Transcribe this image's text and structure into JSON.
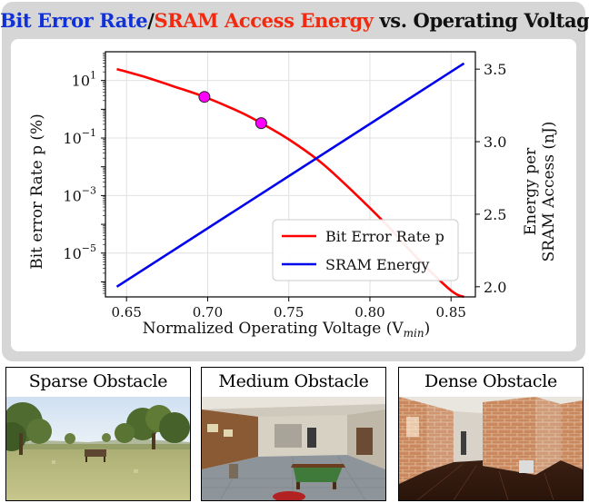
{
  "title": {
    "part1": "Bit Error Rate",
    "sep": "/",
    "part2": "SRAM Access Energy",
    "part3": " vs. Operating Voltage",
    "colors": {
      "part1": "#1030d8",
      "part2": "#f02a10",
      "part3": "#111111"
    }
  },
  "chart_data": {
    "type": "line",
    "xlabel": "Normalized Operating Voltage (V",
    "xlabel_sub": "min",
    "xlabel_close": ")",
    "ylabel_left": "Bit error Rate p (%)",
    "ylabel_right_line1": "Energy per",
    "ylabel_right_line2": "SRAM Access (nJ)",
    "xlim": [
      0.637,
      0.865
    ],
    "x_ticks": [
      "0.65",
      "0.70",
      "0.75",
      "0.80",
      "0.85"
    ],
    "y_left_scale": "log",
    "y_left_lim": [
      3e-07,
      100
    ],
    "y_left_ticks": [
      {
        "base": "10",
        "exp": "1"
      },
      {
        "base": "10",
        "exp": "−1"
      },
      {
        "base": "10",
        "exp": "−3"
      },
      {
        "base": "10",
        "exp": "−5"
      }
    ],
    "y_right_lim": [
      1.93,
      3.62
    ],
    "y_right_ticks": [
      "3.5",
      "3.0",
      "2.5",
      "2.0"
    ],
    "grid": true,
    "legend_position": "lower-right",
    "series": [
      {
        "name": "Bit Error Rate p",
        "color": "#ff0000",
        "axis": "left",
        "x": [
          0.644,
          0.66,
          0.68,
          0.698,
          0.72,
          0.733,
          0.75,
          0.77,
          0.79,
          0.81,
          0.83,
          0.85,
          0.858
        ],
        "y": [
          25,
          14,
          6,
          2.7,
          0.8,
          0.33,
          0.09,
          0.014,
          0.0013,
          0.0001,
          6e-06,
          5e-07,
          3e-07
        ]
      },
      {
        "name": "SRAM Energy",
        "color": "#0000ee",
        "axis": "right",
        "x": [
          0.644,
          0.858
        ],
        "y": [
          2.0,
          3.54
        ]
      }
    ],
    "highlight_points": {
      "color": "#ff00ff",
      "x": [
        0.698,
        0.733
      ],
      "y": [
        2.7,
        0.33
      ]
    }
  },
  "thumbnails": [
    {
      "label": "Sparse Obstacle",
      "icon": "outdoor-scene"
    },
    {
      "label": "Medium Obstacle",
      "icon": "indoor-room-scene"
    },
    {
      "label": "Dense Obstacle",
      "icon": "brick-maze-scene"
    }
  ]
}
